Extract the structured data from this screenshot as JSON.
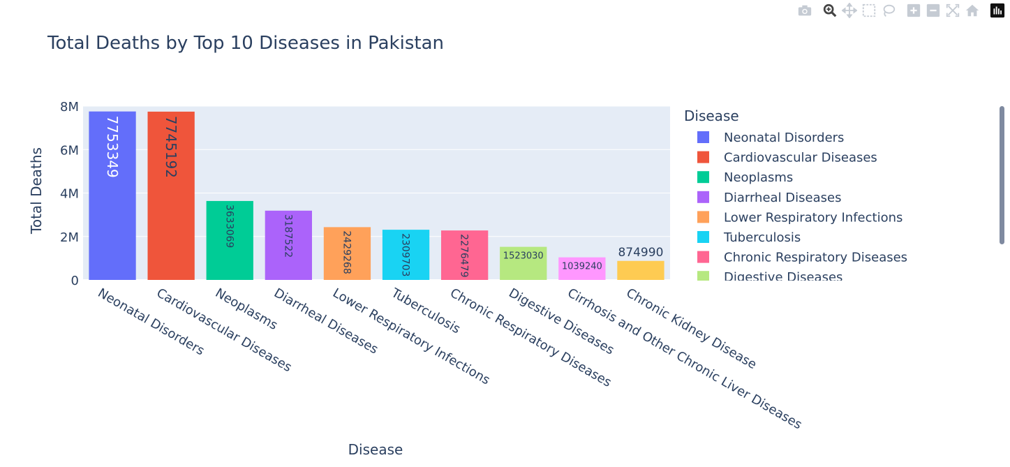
{
  "toolbar": {
    "icons": [
      "camera-icon",
      "zoom-icon",
      "pan-icon",
      "box-select-icon",
      "lasso-icon",
      "zoom-in-icon",
      "zoom-out-icon",
      "autoscale-icon",
      "reset-axes-icon",
      "plotly-logo-icon"
    ]
  },
  "chart_data": {
    "type": "bar",
    "title": "Total Deaths by Top 10 Diseases in Pakistan",
    "xlabel": "Disease",
    "ylabel": "Total Deaths",
    "ylim": [
      0,
      8000000
    ],
    "yticks": [
      "0",
      "2M",
      "4M",
      "6M",
      "8M"
    ],
    "ytick_values": [
      0,
      2000000,
      4000000,
      6000000,
      8000000
    ],
    "grid": true,
    "legend_title": "Disease",
    "legend_position": "right",
    "categories": [
      "Neonatal Disorders",
      "Cardiovascular Diseases",
      "Neoplasms",
      "Diarrheal Diseases",
      "Lower Respiratory Infections",
      "Tuberculosis",
      "Chronic Respiratory Diseases",
      "Digestive Diseases",
      "Cirrhosis and Other Chronic Liver Diseases",
      "Chronic Kidney Disease"
    ],
    "values": [
      7753349,
      7745192,
      3633069,
      3187522,
      2429268,
      2309703,
      2276479,
      1523030,
      1039240,
      874990
    ],
    "labels": [
      "7753349",
      "7745192",
      "3633069",
      "3187522",
      "2429268",
      "2309703",
      "2276479",
      "1523030",
      "1039240",
      "874990"
    ],
    "colors": [
      "#636efa",
      "#EF553B",
      "#00cc96",
      "#ab63fa",
      "#FFA15A",
      "#19d3f3",
      "#FF6692",
      "#B6E880",
      "#FF97FF",
      "#FECB52"
    ],
    "legend_visible": [
      "Neonatal Disorders",
      "Cardiovascular Diseases",
      "Neoplasms",
      "Diarrheal Diseases",
      "Lower Respiratory Infections",
      "Tuberculosis",
      "Chronic Respiratory Diseases",
      "Digestive Diseases"
    ]
  }
}
